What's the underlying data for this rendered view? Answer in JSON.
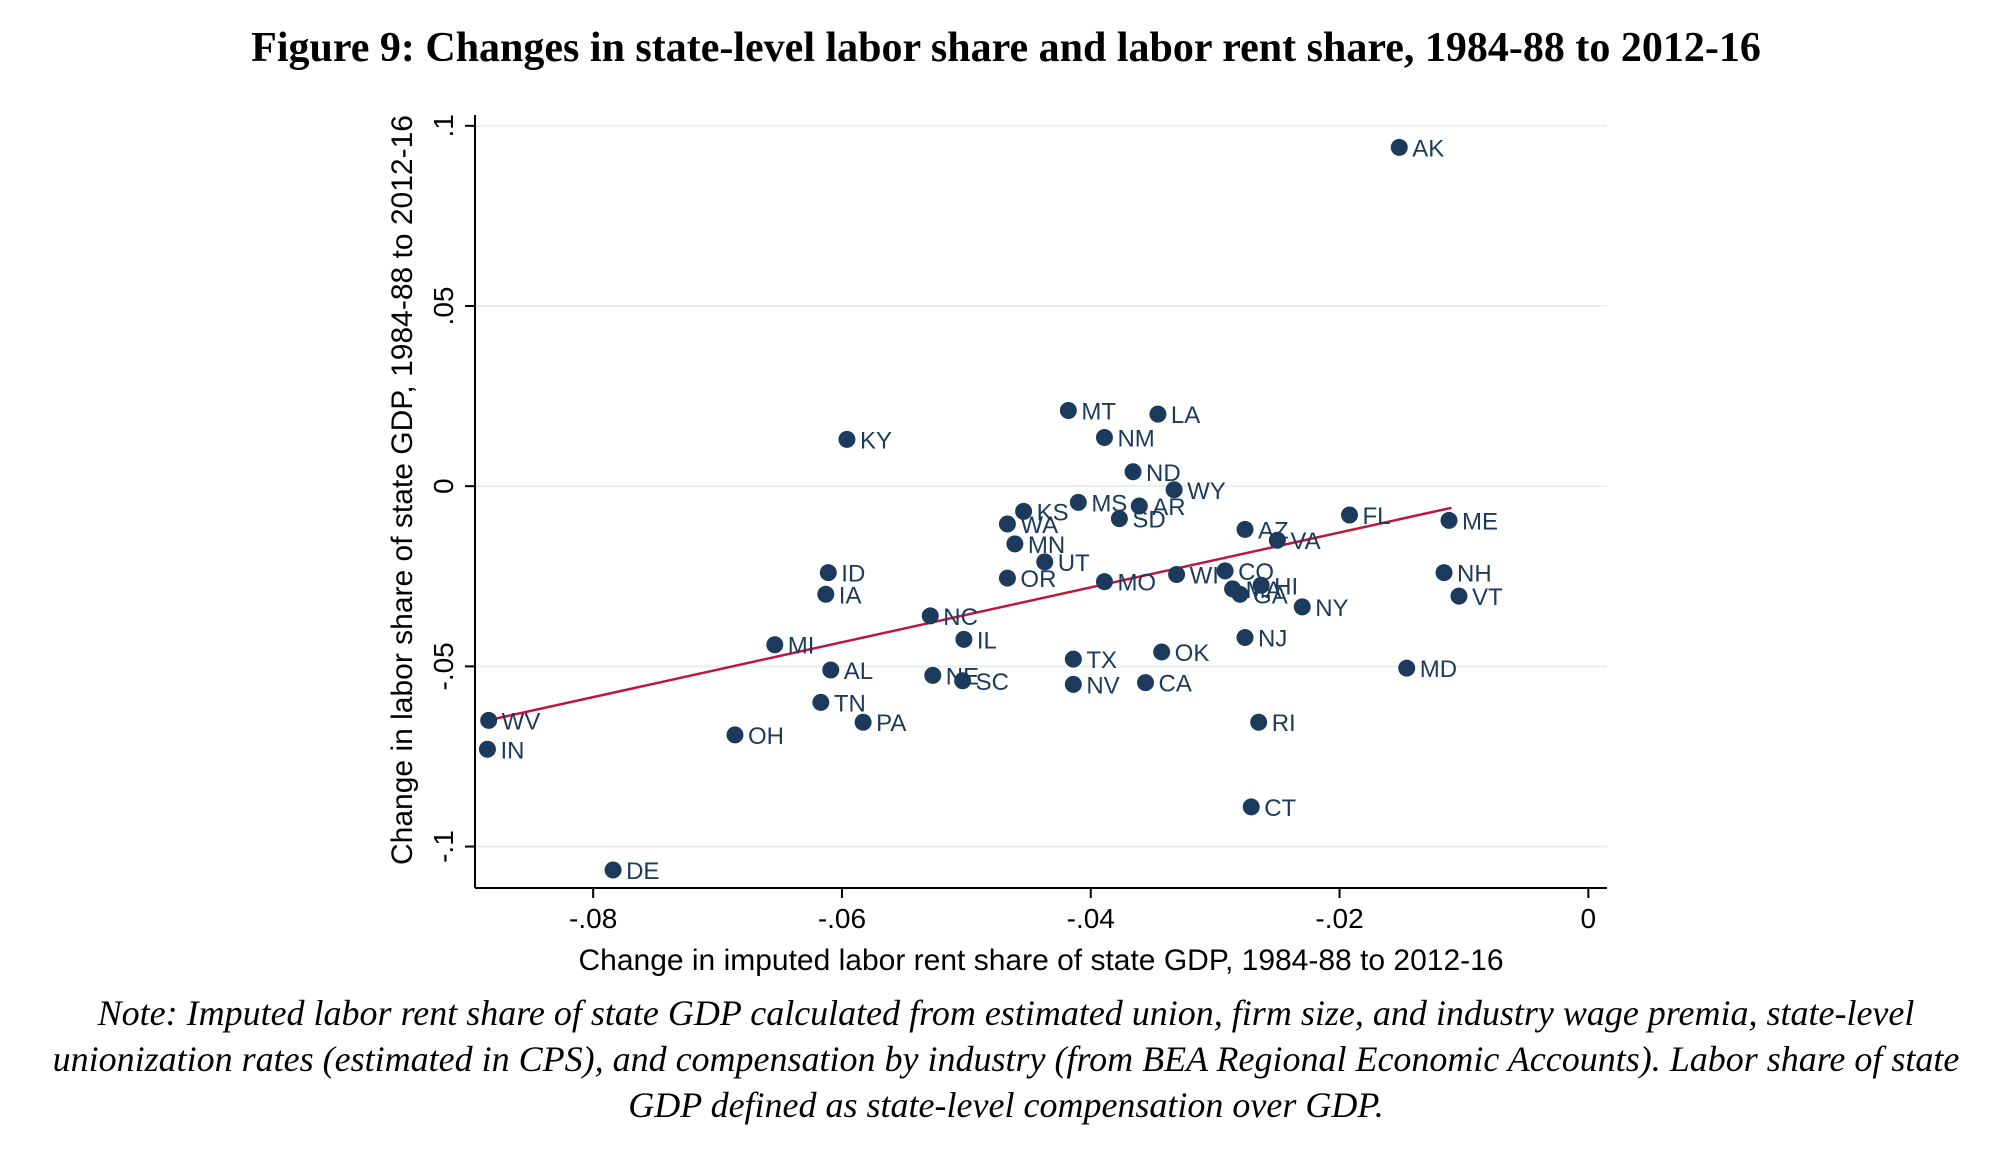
{
  "figure": {
    "title": "Figure 9: Changes in state-level labor share and labor rent share, 1984-88 to 2012-16",
    "note": "Note: Imputed labor rent share of state GDP calculated from estimated union, firm size, and industry wage premia, state-level unionization rates (estimated in CPS), and compensation by industry (from BEA Regional Economic Accounts). Labor share of state GDP defined as state-level compensation over GDP."
  },
  "chart_data": {
    "type": "scatter",
    "xlabel": "Change in imputed labor rent share of state GDP, 1984-88 to 2012-16",
    "ylabel": "Change in labor share of state GDP, 1984-88 to 2012-16",
    "xlim": [
      -0.0895,
      0.0015
    ],
    "ylim": [
      -0.1115,
      0.103
    ],
    "x_ticks": [
      -0.08,
      -0.06,
      -0.04,
      -0.02,
      0
    ],
    "x_tick_labels": [
      "-.08",
      "-.06",
      "-.04",
      "-.02",
      "0"
    ],
    "y_ticks": [
      -0.1,
      -0.05,
      0,
      0.05,
      0.1
    ],
    "y_tick_labels": [
      "-.1",
      "-.05",
      "0",
      ".05",
      ".1"
    ],
    "grid": "horizontal",
    "marker_color": "#1b3a5c",
    "fit_line_color": "#c0143c",
    "fit_line": {
      "x": [
        -0.0885,
        -0.011
      ],
      "y": [
        -0.065,
        -0.006
      ]
    },
    "points": [
      {
        "label": "AK",
        "x": -0.0152,
        "y": 0.094
      },
      {
        "label": "MT",
        "x": -0.0418,
        "y": 0.021
      },
      {
        "label": "LA",
        "x": -0.0346,
        "y": 0.02
      },
      {
        "label": "NM",
        "x": -0.0389,
        "y": 0.0135
      },
      {
        "label": "KY",
        "x": -0.0596,
        "y": 0.013
      },
      {
        "label": "ND",
        "x": -0.0366,
        "y": 0.004
      },
      {
        "label": "WY",
        "x": -0.0333,
        "y": -0.001
      },
      {
        "label": "MS",
        "x": -0.041,
        "y": -0.0045
      },
      {
        "label": "AR",
        "x": -0.0361,
        "y": -0.0055
      },
      {
        "label": "KS",
        "x": -0.0454,
        "y": -0.007
      },
      {
        "label": "SD",
        "x": -0.0377,
        "y": -0.009
      },
      {
        "label": "FL",
        "x": -0.0192,
        "y": -0.008
      },
      {
        "label": "ME",
        "x": -0.0112,
        "y": -0.0095
      },
      {
        "label": "WA",
        "x": -0.0467,
        "y": -0.0105
      },
      {
        "label": "AZ",
        "x": -0.0276,
        "y": -0.012
      },
      {
        "label": "VA",
        "x": -0.025,
        "y": -0.015
      },
      {
        "label": "MN",
        "x": -0.0461,
        "y": -0.016
      },
      {
        "label": "UT",
        "x": -0.0437,
        "y": -0.021
      },
      {
        "label": "ID",
        "x": -0.0611,
        "y": -0.024
      },
      {
        "label": "NH",
        "x": -0.0116,
        "y": -0.024
      },
      {
        "label": "CO",
        "x": -0.0292,
        "y": -0.0235
      },
      {
        "label": "WI",
        "x": -0.0331,
        "y": -0.0245
      },
      {
        "label": "OR",
        "x": -0.0467,
        "y": -0.0255
      },
      {
        "label": "MO",
        "x": -0.0389,
        "y": -0.0265
      },
      {
        "label": "MA",
        "x": -0.0286,
        "y": -0.0285
      },
      {
        "label": "HI",
        "x": -0.0263,
        "y": -0.0275
      },
      {
        "label": "GA",
        "x": -0.028,
        "y": -0.03
      },
      {
        "label": "IA",
        "x": -0.0613,
        "y": -0.03
      },
      {
        "label": "VT",
        "x": -0.0104,
        "y": -0.0305
      },
      {
        "label": "NY",
        "x": -0.023,
        "y": -0.0335
      },
      {
        "label": "NC",
        "x": -0.0529,
        "y": -0.036
      },
      {
        "label": "IL",
        "x": -0.0502,
        "y": -0.0425
      },
      {
        "label": "NJ",
        "x": -0.0276,
        "y": -0.042
      },
      {
        "label": "MI",
        "x": -0.0654,
        "y": -0.044
      },
      {
        "label": "OK",
        "x": -0.0343,
        "y": -0.046
      },
      {
        "label": "TX",
        "x": -0.0414,
        "y": -0.048
      },
      {
        "label": "AL",
        "x": -0.0609,
        "y": -0.051
      },
      {
        "label": "MD",
        "x": -0.0146,
        "y": -0.0505
      },
      {
        "label": "NE",
        "x": -0.0527,
        "y": -0.0525
      },
      {
        "label": "SC",
        "x": -0.0503,
        "y": -0.054
      },
      {
        "label": "NV",
        "x": -0.0414,
        "y": -0.055
      },
      {
        "label": "CA",
        "x": -0.0356,
        "y": -0.0545
      },
      {
        "label": "TN",
        "x": -0.0617,
        "y": -0.06
      },
      {
        "label": "WV",
        "x": -0.0884,
        "y": -0.065
      },
      {
        "label": "PA",
        "x": -0.0583,
        "y": -0.0655
      },
      {
        "label": "RI",
        "x": -0.0265,
        "y": -0.0655
      },
      {
        "label": "OH",
        "x": -0.0686,
        "y": -0.069
      },
      {
        "label": "IN",
        "x": -0.0885,
        "y": -0.073
      },
      {
        "label": "CT",
        "x": -0.0271,
        "y": -0.089
      },
      {
        "label": "DE",
        "x": -0.0784,
        "y": -0.1065
      }
    ]
  }
}
